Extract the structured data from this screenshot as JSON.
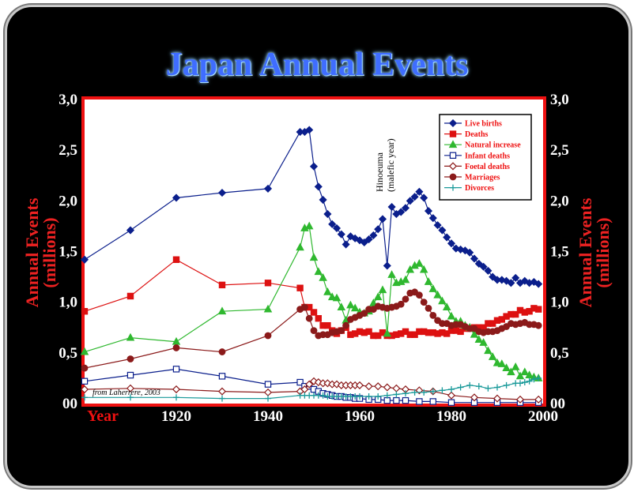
{
  "chart_data": {
    "type": "line",
    "title": "Japan Annual Events",
    "ylabel_left": "Annual Events",
    "ylabel_left_sub": "(millions)",
    "ylabel_right": "Annual Events",
    "ylabel_right_sub": "(millions)",
    "xlabel": "Year",
    "xlim": [
      1900,
      2000
    ],
    "ylim": [
      0,
      3.0
    ],
    "x_ticks": [
      "1920",
      "1940",
      "1960",
      "1980",
      "2000"
    ],
    "x_tick_values": [
      1920,
      1940,
      1960,
      1980,
      2000
    ],
    "y_ticks": [
      "00",
      "0,5",
      "1,0",
      "1,5",
      "2,0",
      "2,5",
      "3,0"
    ],
    "y_tick_values": [
      0,
      0.5,
      1.0,
      1.5,
      2.0,
      2.5,
      3.0
    ],
    "grid": false,
    "legend_position": "top-right",
    "annotation_line1": "Hinoeuma",
    "annotation_line2": "(malefic year)",
    "annotation_year": 1966,
    "source": "from Laherrere, 2003",
    "series": [
      {
        "name": "Live births",
        "color": "#0b1f8c",
        "marker": "diamond-filled",
        "x": [
          1900,
          1910,
          1920,
          1930,
          1940,
          1947,
          1948,
          1949,
          1950,
          1951,
          1952,
          1953,
          1954,
          1955,
          1956,
          1957,
          1958,
          1959,
          1960,
          1961,
          1962,
          1963,
          1964,
          1965,
          1966,
          1967,
          1968,
          1969,
          1970,
          1971,
          1972,
          1973,
          1974,
          1975,
          1976,
          1977,
          1978,
          1979,
          1980,
          1981,
          1982,
          1983,
          1984,
          1985,
          1986,
          1987,
          1988,
          1989,
          1990,
          1991,
          1992,
          1993,
          1994,
          1995,
          1996,
          1997,
          1998,
          1999
        ],
        "y": [
          1.42,
          1.71,
          2.03,
          2.08,
          2.12,
          2.68,
          2.68,
          2.7,
          2.34,
          2.14,
          2.01,
          1.87,
          1.77,
          1.73,
          1.67,
          1.57,
          1.65,
          1.63,
          1.61,
          1.59,
          1.62,
          1.66,
          1.72,
          1.82,
          1.36,
          1.94,
          1.87,
          1.89,
          1.93,
          2.0,
          2.04,
          2.09,
          2.03,
          1.9,
          1.83,
          1.76,
          1.71,
          1.64,
          1.58,
          1.53,
          1.52,
          1.51,
          1.49,
          1.43,
          1.38,
          1.35,
          1.31,
          1.25,
          1.22,
          1.22,
          1.21,
          1.19,
          1.24,
          1.19,
          1.21,
          1.19,
          1.2,
          1.18
        ]
      },
      {
        "name": "Deaths",
        "color": "#dd1111",
        "marker": "square-filled",
        "x": [
          1900,
          1910,
          1920,
          1930,
          1940,
          1947,
          1948,
          1949,
          1950,
          1951,
          1952,
          1953,
          1954,
          1955,
          1956,
          1957,
          1958,
          1959,
          1960,
          1961,
          1962,
          1963,
          1964,
          1965,
          1966,
          1967,
          1968,
          1969,
          1970,
          1971,
          1972,
          1973,
          1974,
          1975,
          1976,
          1977,
          1978,
          1979,
          1980,
          1981,
          1982,
          1983,
          1984,
          1985,
          1986,
          1987,
          1988,
          1989,
          1990,
          1991,
          1992,
          1993,
          1994,
          1995,
          1996,
          1997,
          1998,
          1999
        ],
        "y": [
          0.91,
          1.06,
          1.42,
          1.17,
          1.19,
          1.14,
          0.95,
          0.95,
          0.9,
          0.84,
          0.77,
          0.77,
          0.72,
          0.69,
          0.72,
          0.75,
          0.68,
          0.69,
          0.71,
          0.7,
          0.71,
          0.67,
          0.67,
          0.7,
          0.67,
          0.67,
          0.68,
          0.69,
          0.71,
          0.68,
          0.68,
          0.71,
          0.71,
          0.7,
          0.7,
          0.69,
          0.7,
          0.69,
          0.72,
          0.72,
          0.71,
          0.74,
          0.74,
          0.75,
          0.75,
          0.75,
          0.79,
          0.79,
          0.82,
          0.83,
          0.86,
          0.88,
          0.88,
          0.92,
          0.9,
          0.91,
          0.94,
          0.93
        ]
      },
      {
        "name": "Natural increase",
        "color": "#2fb82f",
        "marker": "triangle-filled",
        "x": [
          1900,
          1910,
          1920,
          1930,
          1940,
          1947,
          1948,
          1949,
          1950,
          1951,
          1952,
          1953,
          1954,
          1955,
          1956,
          1957,
          1958,
          1959,
          1960,
          1961,
          1962,
          1963,
          1964,
          1965,
          1966,
          1967,
          1968,
          1969,
          1970,
          1971,
          1972,
          1973,
          1974,
          1975,
          1976,
          1977,
          1978,
          1979,
          1980,
          1981,
          1982,
          1983,
          1984,
          1985,
          1986,
          1987,
          1988,
          1989,
          1990,
          1991,
          1992,
          1993,
          1994,
          1995,
          1996,
          1997,
          1998,
          1999
        ],
        "y": [
          0.51,
          0.65,
          0.61,
          0.91,
          0.93,
          1.54,
          1.73,
          1.75,
          1.44,
          1.3,
          1.24,
          1.1,
          1.05,
          1.04,
          0.95,
          0.82,
          0.97,
          0.94,
          0.9,
          0.89,
          0.91,
          0.99,
          1.05,
          1.12,
          0.69,
          1.27,
          1.19,
          1.2,
          1.22,
          1.32,
          1.36,
          1.38,
          1.32,
          1.2,
          1.13,
          1.07,
          1.01,
          0.95,
          0.86,
          0.81,
          0.81,
          0.77,
          0.75,
          0.68,
          0.63,
          0.6,
          0.52,
          0.46,
          0.4,
          0.39,
          0.35,
          0.31,
          0.36,
          0.27,
          0.31,
          0.28,
          0.26,
          0.25
        ]
      },
      {
        "name": "Infant deaths",
        "color": "#0b1f8c",
        "marker": "square-open",
        "x": [
          1900,
          1910,
          1920,
          1930,
          1940,
          1947,
          1948,
          1949,
          1950,
          1951,
          1952,
          1953,
          1954,
          1955,
          1956,
          1957,
          1958,
          1959,
          1960,
          1962,
          1964,
          1966,
          1968,
          1970,
          1973,
          1976,
          1980,
          1985,
          1990,
          1995,
          1999
        ],
        "y": [
          0.22,
          0.28,
          0.34,
          0.27,
          0.19,
          0.21,
          0.17,
          0.17,
          0.14,
          0.12,
          0.1,
          0.09,
          0.08,
          0.07,
          0.07,
          0.06,
          0.06,
          0.05,
          0.05,
          0.04,
          0.04,
          0.03,
          0.03,
          0.03,
          0.02,
          0.02,
          0.01,
          0.01,
          0.01,
          0.01,
          0.01
        ]
      },
      {
        "name": "Foetal deaths",
        "color": "#8b1a1a",
        "marker": "diamond-open",
        "x": [
          1900,
          1910,
          1920,
          1930,
          1940,
          1947,
          1948,
          1949,
          1950,
          1951,
          1952,
          1953,
          1954,
          1955,
          1956,
          1957,
          1958,
          1959,
          1960,
          1962,
          1964,
          1966,
          1968,
          1970,
          1973,
          1976,
          1980,
          1985,
          1990,
          1995,
          1999
        ],
        "y": [
          0.14,
          0.15,
          0.14,
          0.12,
          0.11,
          0.12,
          0.14,
          0.19,
          0.22,
          0.21,
          0.2,
          0.2,
          0.19,
          0.19,
          0.18,
          0.18,
          0.18,
          0.18,
          0.18,
          0.17,
          0.17,
          0.16,
          0.15,
          0.14,
          0.13,
          0.12,
          0.08,
          0.06,
          0.05,
          0.04,
          0.04
        ]
      },
      {
        "name": "Marriages",
        "color": "#8b1a1a",
        "marker": "circle-filled",
        "x": [
          1900,
          1910,
          1920,
          1930,
          1940,
          1947,
          1948,
          1949,
          1950,
          1951,
          1952,
          1953,
          1954,
          1955,
          1956,
          1957,
          1958,
          1959,
          1960,
          1961,
          1962,
          1963,
          1964,
          1965,
          1966,
          1967,
          1968,
          1969,
          1970,
          1971,
          1972,
          1973,
          1974,
          1975,
          1976,
          1977,
          1978,
          1979,
          1980,
          1981,
          1982,
          1983,
          1984,
          1985,
          1986,
          1987,
          1988,
          1989,
          1990,
          1991,
          1992,
          1993,
          1994,
          1995,
          1996,
          1997,
          1998,
          1999
        ],
        "y": [
          0.35,
          0.44,
          0.55,
          0.51,
          0.67,
          0.93,
          0.95,
          0.84,
          0.72,
          0.67,
          0.68,
          0.68,
          0.7,
          0.71,
          0.72,
          0.77,
          0.83,
          0.85,
          0.87,
          0.89,
          0.93,
          0.93,
          0.96,
          0.95,
          0.94,
          0.95,
          0.96,
          0.98,
          1.03,
          1.09,
          1.1,
          1.07,
          1.0,
          0.94,
          0.87,
          0.82,
          0.79,
          0.79,
          0.77,
          0.78,
          0.78,
          0.76,
          0.74,
          0.74,
          0.71,
          0.7,
          0.71,
          0.71,
          0.72,
          0.74,
          0.76,
          0.79,
          0.78,
          0.79,
          0.8,
          0.78,
          0.78,
          0.77
        ]
      },
      {
        "name": "Divorces",
        "color": "#1a9a9a",
        "marker": "plus",
        "x": [
          1900,
          1910,
          1920,
          1930,
          1940,
          1947,
          1948,
          1949,
          1950,
          1951,
          1952,
          1953,
          1954,
          1955,
          1956,
          1957,
          1958,
          1959,
          1960,
          1962,
          1964,
          1966,
          1968,
          1970,
          1972,
          1974,
          1976,
          1978,
          1980,
          1982,
          1984,
          1986,
          1988,
          1990,
          1992,
          1994,
          1995,
          1996,
          1997,
          1998,
          1999
        ],
        "y": [
          0.06,
          0.06,
          0.06,
          0.05,
          0.05,
          0.08,
          0.08,
          0.08,
          0.08,
          0.08,
          0.08,
          0.07,
          0.07,
          0.07,
          0.07,
          0.07,
          0.07,
          0.07,
          0.07,
          0.07,
          0.07,
          0.08,
          0.09,
          0.1,
          0.11,
          0.11,
          0.12,
          0.13,
          0.14,
          0.16,
          0.18,
          0.17,
          0.15,
          0.16,
          0.18,
          0.2,
          0.2,
          0.21,
          0.22,
          0.24,
          0.25
        ]
      }
    ]
  }
}
